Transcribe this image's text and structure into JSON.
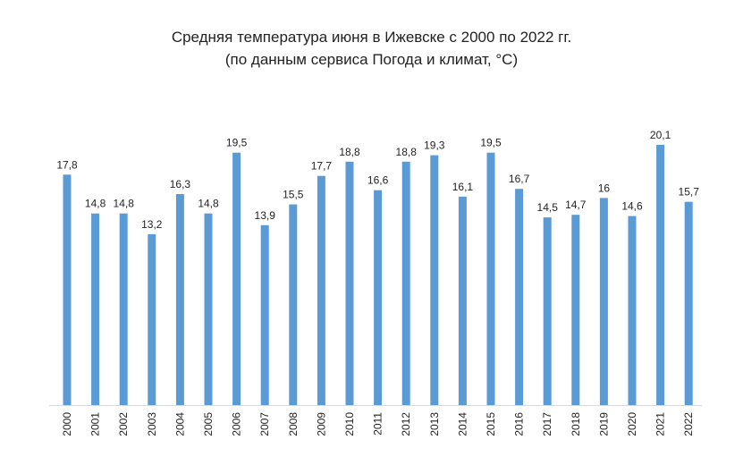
{
  "chart_data": {
    "type": "bar",
    "title": "Средняя температура июня в Ижевске с 2000 по 2022 гг.",
    "subtitle": "(по данным сервиса Погода и климат, °С)",
    "categories": [
      "2000",
      "2001",
      "2002",
      "2003",
      "2004",
      "2005",
      "2006",
      "2007",
      "2008",
      "2009",
      "2010",
      "2011",
      "2012",
      "2013",
      "2014",
      "2015",
      "2016",
      "2017",
      "2018",
      "2019",
      "2020",
      "2021",
      "2022"
    ],
    "values": [
      17.8,
      14.8,
      14.8,
      13.2,
      16.3,
      14.8,
      19.5,
      13.9,
      15.5,
      17.7,
      18.8,
      16.6,
      18.8,
      19.3,
      16.1,
      19.5,
      16.7,
      14.5,
      14.7,
      16,
      14.6,
      20.1,
      15.7
    ],
    "value_labels": [
      "17,8",
      "14,8",
      "14,8",
      "13,2",
      "16,3",
      "14,8",
      "19,5",
      "13,9",
      "15,5",
      "17,7",
      "18,8",
      "16,6",
      "18,8",
      "19,3",
      "16,1",
      "19,5",
      "16,7",
      "14,5",
      "14,7",
      "16",
      "14,6",
      "20,1",
      "15,7"
    ],
    "ylim": [
      0,
      20.1
    ],
    "grid": false,
    "colors": {
      "bar": "#5b9bd5",
      "axis": "#d9d9d9"
    }
  }
}
